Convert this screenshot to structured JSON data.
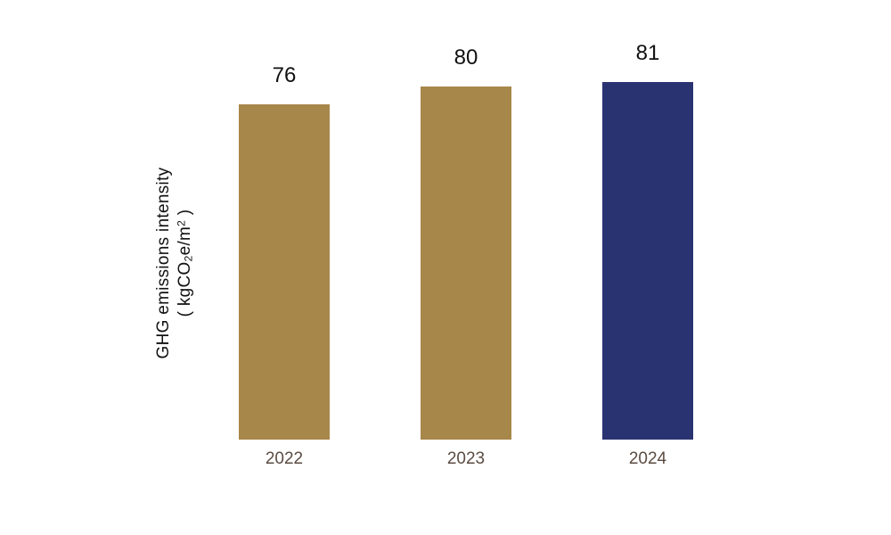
{
  "chart_data": {
    "type": "bar",
    "title": "",
    "xlabel": "",
    "ylabel": "GHG emissions intensity ( kgCO2e/m2 )",
    "ylabel_line1": "GHG emissions intensity",
    "ylabel_line2": {
      "open": "( kgCO",
      "sub": "2",
      "mid": "e/m",
      "sup": "2",
      "close": " )"
    },
    "categories": [
      "2022",
      "2023",
      "2024"
    ],
    "values": [
      76,
      80,
      81
    ],
    "value_labels": [
      "76",
      "80",
      "81"
    ],
    "bar_colors": [
      "#A8874A",
      "#A8874A",
      "#2A3372"
    ],
    "value_label_color": "#111111",
    "category_label_color": "#5B4C42",
    "background_color": "#FFFFFF",
    "ylim": [
      0,
      85
    ],
    "grid": false,
    "legend": null,
    "axes_visible": false
  }
}
